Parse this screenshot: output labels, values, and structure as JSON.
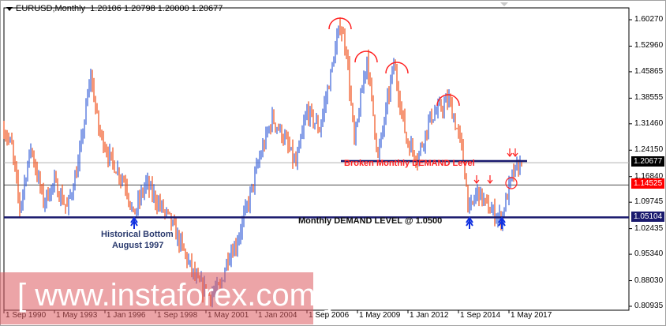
{
  "header": {
    "symbol_timeframe": "EURUSD,Monthly",
    "ohlc": "1.20106 1.20798 1.20000 1.20677"
  },
  "price_axis": {
    "ticks": [
      "1.60270",
      "1.52960",
      "1.45865",
      "1.38555",
      "1.31460",
      "1.24150",
      "1.16840",
      "1.09745",
      "1.02435",
      "0.95340",
      "0.88030",
      "0.80935"
    ],
    "current_price": {
      "label": "1.20677",
      "color": "#000000"
    },
    "red_level": {
      "label": "1.14525",
      "color": "#ff0000"
    },
    "demand_level": {
      "label": "1.05104",
      "color": "#1a1a6e"
    }
  },
  "time_axis": {
    "ticks": [
      "1 Sep 1990",
      "1 May 1993",
      "1 Jan 1996",
      "1 Sep 1998",
      "1 May 2001",
      "1 Jan 2004",
      "1 Sep 2006",
      "1 May 2009",
      "1 Jan 2012",
      "1 Sep 2014",
      "1 May 2017"
    ]
  },
  "annotations": {
    "broken_level": "Broken Monthly DEMAND Level",
    "demand_level": "Monthly DEMAND LEVEL @ 1.0500",
    "historical_bottom_line1": "Historical Bottom",
    "historical_bottom_line2": "August 1997"
  },
  "watermark": "[ www.instaforex.com ]",
  "colors": {
    "up_bar": "#3a62d8",
    "down_bar": "#f0501a",
    "annotation_red": "#ff2020",
    "arrow_blue": "#1030e0",
    "level_navy": "#1a1a6e"
  },
  "chart_data": {
    "type": "ohlc",
    "symbol": "EURUSD",
    "timeframe": "Monthly",
    "ylim": [
      0.80935,
      1.6027
    ],
    "xlim": [
      "1990-09",
      "2018-01"
    ],
    "levels": [
      {
        "price": 1.20677,
        "style": "gray"
      },
      {
        "price": 1.14525,
        "style": "red"
      },
      {
        "price": 1.05104,
        "style": "navy-thick"
      },
      {
        "price": 1.211,
        "style": "navy",
        "from": "2008-06"
      }
    ],
    "approx_close_path": [
      [
        "1990-09",
        1.3
      ],
      [
        "1991-02",
        1.25
      ],
      [
        "1991-07",
        1.08
      ],
      [
        "1992-02",
        1.25
      ],
      [
        "1992-10",
        1.1
      ],
      [
        "1993-05",
        1.15
      ],
      [
        "1994-01",
        1.08
      ],
      [
        "1994-08",
        1.2
      ],
      [
        "1995-04",
        1.45
      ],
      [
        "1995-09",
        1.3
      ],
      [
        "1996-04",
        1.22
      ],
      [
        "1997-02",
        1.15
      ],
      [
        "1997-07",
        1.06
      ],
      [
        "1998-03",
        1.15
      ],
      [
        "1998-10",
        1.1
      ],
      [
        "1999-06",
        1.05
      ],
      [
        "2000-04",
        0.95
      ],
      [
        "2000-11",
        0.88
      ],
      [
        "2001-07",
        0.84
      ],
      [
        "2002-02",
        0.86
      ],
      [
        "2002-07",
        0.95
      ],
      [
        "2002-12",
        0.98
      ],
      [
        "2003-08",
        1.1
      ],
      [
        "2004-03",
        1.22
      ],
      [
        "2004-11",
        1.33
      ],
      [
        "2005-06",
        1.28
      ],
      [
        "2006-02",
        1.2
      ],
      [
        "2006-09",
        1.35
      ],
      [
        "2007-05",
        1.3
      ],
      [
        "2007-12",
        1.45
      ],
      [
        "2008-06",
        1.59
      ],
      [
        "2008-10",
        1.52
      ],
      [
        "2009-03",
        1.26
      ],
      [
        "2009-11",
        1.5
      ],
      [
        "2010-06",
        1.22
      ],
      [
        "2011-04",
        1.48
      ],
      [
        "2011-12",
        1.27
      ],
      [
        "2012-07",
        1.22
      ],
      [
        "2013-03",
        1.33
      ],
      [
        "2014-03",
        1.38
      ],
      [
        "2014-11",
        1.25
      ],
      [
        "2015-04",
        1.07
      ],
      [
        "2015-09",
        1.13
      ],
      [
        "2016-04",
        1.08
      ],
      [
        "2016-12",
        1.05
      ],
      [
        "2017-07",
        1.17
      ],
      [
        "2018-01",
        1.207
      ]
    ]
  }
}
